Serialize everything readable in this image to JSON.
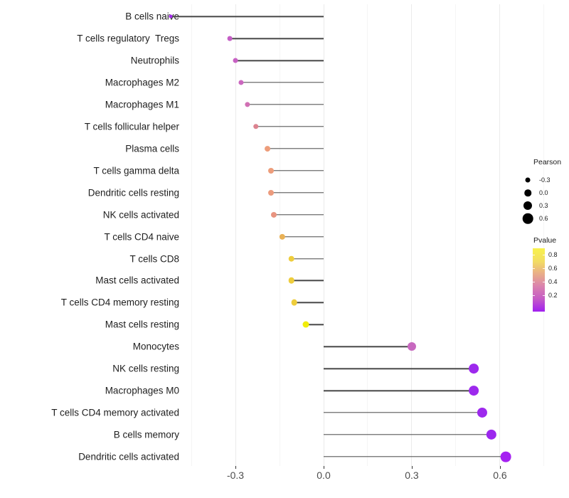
{
  "chart_data": {
    "type": "scatter",
    "subtype": "lollipop",
    "title": "",
    "xlabel": "",
    "ylabel": "",
    "x_axis": {
      "major_ticks": [
        -0.3,
        0.0,
        0.3,
        0.6
      ],
      "major_tick_labels": [
        "-0.3",
        "0.0",
        "0.3",
        "0.6"
      ],
      "minor_ticks": [
        -0.45,
        -0.15,
        0.15,
        0.45,
        0.75
      ],
      "range": [
        -0.465,
        0.815
      ],
      "grid": "vertical-only"
    },
    "baseline": 0.0,
    "points": [
      {
        "label": "B cells naive",
        "pearson": -0.52,
        "color": "#A32BEC"
      },
      {
        "label": "T cells regulatory  Tregs",
        "pearson": -0.32,
        "color": "#C55EC6"
      },
      {
        "label": "Neutrophils",
        "pearson": -0.3,
        "color": "#C761C3"
      },
      {
        "label": "Macrophages M2",
        "pearson": -0.28,
        "color": "#CB67BF"
      },
      {
        "label": "Macrophages M1",
        "pearson": -0.26,
        "color": "#D170B4"
      },
      {
        "label": "T cells follicular helper",
        "pearson": -0.23,
        "color": "#DC8390"
      },
      {
        "label": "Plasma cells",
        "pearson": -0.19,
        "color": "#ED9D7B"
      },
      {
        "label": "T cells gamma delta",
        "pearson": -0.18,
        "color": "#ED9D7B"
      },
      {
        "label": "Dendritic cells resting",
        "pearson": -0.18,
        "color": "#EC9B7D"
      },
      {
        "label": "NK cells activated",
        "pearson": -0.17,
        "color": "#E89480"
      },
      {
        "label": "T cells CD4 naive",
        "pearson": -0.14,
        "color": "#E9B156"
      },
      {
        "label": "T cells CD8",
        "pearson": -0.11,
        "color": "#EECD3C"
      },
      {
        "label": "Mast cells activated",
        "pearson": -0.11,
        "color": "#EECD3C"
      },
      {
        "label": "T cells CD4 memory resting",
        "pearson": -0.1,
        "color": "#EECD3C"
      },
      {
        "label": "Mast cells resting",
        "pearson": -0.06,
        "color": "#F0EC0A"
      },
      {
        "label": "Monocytes",
        "pearson": 0.3,
        "color": "#C768BF"
      },
      {
        "label": "NK cells resting",
        "pearson": 0.51,
        "color": "#9D29ED"
      },
      {
        "label": "Macrophages M0",
        "pearson": 0.51,
        "color": "#9D29ED"
      },
      {
        "label": "T cells CD4 memory activated",
        "pearson": 0.54,
        "color": "#9D29ED"
      },
      {
        "label": "B cells memory",
        "pearson": 0.57,
        "color": "#9C27EE"
      },
      {
        "label": "Dendritic cells activated",
        "pearson": 0.62,
        "color": "#A521F1"
      }
    ],
    "legend": {
      "position": "right",
      "size_legend": {
        "title": "Pearson",
        "entries": [
          {
            "label": "-0.3",
            "value": -0.3
          },
          {
            "label": "0.0",
            "value": 0.0
          },
          {
            "label": "0.3",
            "value": 0.3
          },
          {
            "label": "0.6",
            "value": 0.6
          }
        ],
        "dot_color": "#000000"
      },
      "color_legend": {
        "title": "Pvalue",
        "tick_labels": [
          "0.8",
          "0.6",
          "0.4",
          "0.2"
        ],
        "tick_values": [
          0.8,
          0.6,
          0.4,
          0.2
        ],
        "gradient_bottom_to_top": [
          "#A020F0",
          "#C55BC6",
          "#DA82AE",
          "#E9AE88",
          "#F3DE62",
          "#F8F24B"
        ]
      }
    }
  }
}
